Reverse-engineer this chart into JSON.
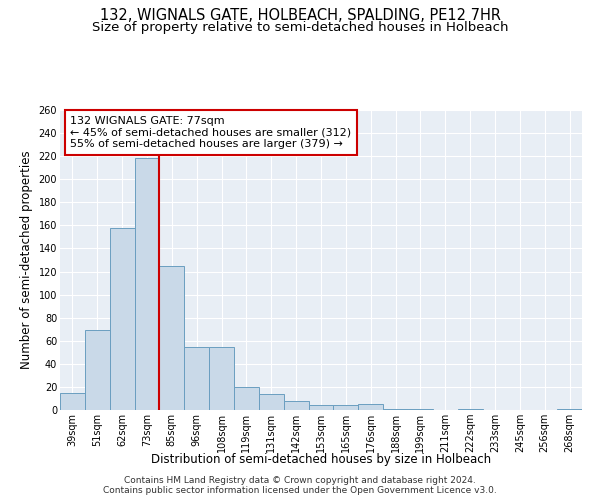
{
  "title": "132, WIGNALS GATE, HOLBEACH, SPALDING, PE12 7HR",
  "subtitle": "Size of property relative to semi-detached houses in Holbeach",
  "xlabel": "Distribution of semi-detached houses by size in Holbeach",
  "ylabel": "Number of semi-detached properties",
  "footnote1": "Contains HM Land Registry data © Crown copyright and database right 2024.",
  "footnote2": "Contains public sector information licensed under the Open Government Licence v3.0.",
  "categories": [
    "39sqm",
    "51sqm",
    "62sqm",
    "73sqm",
    "85sqm",
    "96sqm",
    "108sqm",
    "119sqm",
    "131sqm",
    "142sqm",
    "153sqm",
    "165sqm",
    "176sqm",
    "188sqm",
    "199sqm",
    "211sqm",
    "222sqm",
    "233sqm",
    "245sqm",
    "256sqm",
    "268sqm"
  ],
  "values": [
    15,
    69,
    158,
    218,
    125,
    55,
    55,
    20,
    14,
    8,
    4,
    4,
    5,
    1,
    1,
    0,
    1,
    0,
    0,
    0,
    1
  ],
  "bar_color": "#c9d9e8",
  "bar_edge_color": "#6a9ec0",
  "vline_color": "#cc0000",
  "vline_position": 3.5,
  "annotation_text": "132 WIGNALS GATE: 77sqm\n← 45% of semi-detached houses are smaller (312)\n55% of semi-detached houses are larger (379) →",
  "annotation_box_color": "white",
  "annotation_box_edge_color": "#cc0000",
  "ylim": [
    0,
    260
  ],
  "yticks": [
    0,
    20,
    40,
    60,
    80,
    100,
    120,
    140,
    160,
    180,
    200,
    220,
    240,
    260
  ],
  "background_color": "#e8eef5",
  "grid_color": "white",
  "title_fontsize": 10.5,
  "subtitle_fontsize": 9.5,
  "axis_label_fontsize": 8.5,
  "tick_fontsize": 7,
  "annotation_fontsize": 8,
  "footnote_fontsize": 6.5
}
